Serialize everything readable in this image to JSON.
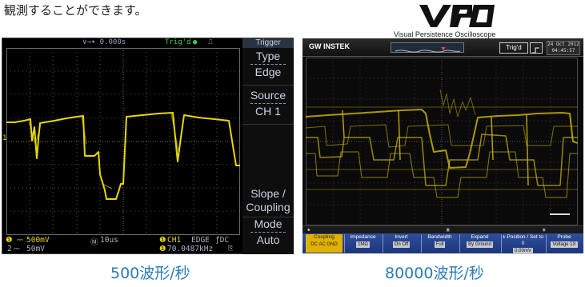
{
  "intro_text": "観測することができます。",
  "vpo_logo": {
    "letters": "VPO",
    "subtitle": "Visual Persistence Oscilloscope"
  },
  "left_scope": {
    "top_bar": {
      "time_delay": "∨→▾ 0.000s",
      "trig_status": "Trig'd",
      "trigger_label": "Trigger"
    },
    "menu": [
      {
        "title": "Type",
        "value": "Edge"
      },
      {
        "title": "Source",
        "value": "CH 1"
      },
      {
        "title": "Slope /",
        "value": "Coupling"
      },
      {
        "title": "Mode",
        "value": "Auto"
      }
    ],
    "ch1_scale": "500mV",
    "ch2_scale": "50mV",
    "timebase": "10us",
    "trigger_ch": "CH1",
    "trigger_type": "EDGE",
    "trigger_coupling": "ƒDC",
    "frequency": "70.0487kHz",
    "ch1_marker": "1",
    "ch2_marker": "2"
  },
  "right_scope": {
    "brand": "GW INSTEK",
    "trig_status": "Trig'd",
    "clock": [
      "24 Oct 2012",
      "04:45:57"
    ],
    "menu": [
      {
        "title": "Coupling",
        "value": "DC AC GND"
      },
      {
        "title": "Impedance",
        "value": "1MΩ"
      },
      {
        "title": "Invert",
        "value": "On Off"
      },
      {
        "title": "Bandwidth",
        "value": "Full"
      },
      {
        "title": "Expand",
        "value": "By Ground"
      },
      {
        "title": "± Position / Set to 0",
        "value": "0.00mV"
      },
      {
        "title": "Probe",
        "value": "Voltage 1X"
      }
    ]
  },
  "captions": {
    "left": "500波形/秒",
    "right": "80000波形/秒"
  },
  "colors": {
    "trace_yellow": "#e6d800",
    "grid": "#5a5a5a",
    "caption_blue": "#2c7bb8",
    "menu_blue": "#2f4f9c"
  }
}
